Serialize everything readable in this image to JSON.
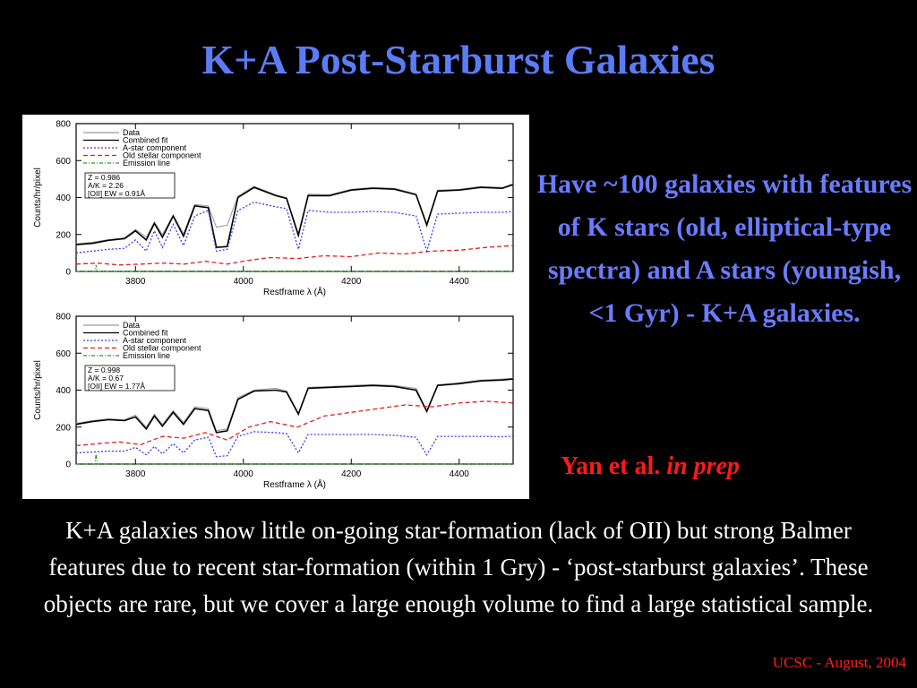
{
  "slide": {
    "title": "K+A Post-Starburst Galaxies",
    "side_text": "Have ~100 galaxies with features of K stars (old, elliptical-type spectra) and A stars (youngish, <1 Gyr) - K+A galaxies.",
    "citation_authors": "Yan et al.",
    "citation_status": "in prep",
    "body_text": "K+A galaxies show little on-going star-formation (lack of OII) but strong Balmer features due to recent star-formation (within 1 Gry) - ‘post-starburst galaxies’.  These objects are rare, but we cover a large enough volume to find a large statistical sample.",
    "footer": "UCSC - August, 2004"
  },
  "chart_data": [
    {
      "type": "line",
      "xlabel": "Restframe λ (Å)",
      "ylabel": "Counts/hr/pixel",
      "xlim": [
        3690,
        4500
      ],
      "ylim": [
        0,
        800
      ],
      "xticks": [
        3800,
        4000,
        4200,
        4400
      ],
      "yticks": [
        0,
        200,
        400,
        600,
        800
      ],
      "legend_position": "top-left",
      "legend": [
        "Data",
        "Combined fit",
        "A-star component",
        "Old stellar component",
        "Emission line"
      ],
      "annotations": [
        "Z = 0.986",
        "A/K =   2.26",
        "[OII] EW =   0.91Å"
      ],
      "series": [
        {
          "name": "Data",
          "color": "#9a9a9a",
          "x": [
            3690,
            3720,
            3750,
            3780,
            3800,
            3820,
            3835,
            3850,
            3870,
            3889,
            3910,
            3935,
            3950,
            3970,
            3990,
            4020,
            4060,
            4080,
            4102,
            4120,
            4160,
            4200,
            4240,
            4280,
            4320,
            4340,
            4360,
            4400,
            4440,
            4480,
            4500
          ],
          "y": [
            150,
            158,
            172,
            182,
            228,
            185,
            268,
            200,
            305,
            205,
            362,
            355,
            240,
            250,
            408,
            460,
            415,
            400,
            205,
            418,
            415,
            445,
            455,
            450,
            420,
            260,
            440,
            445,
            460,
            455,
            475
          ]
        },
        {
          "name": "Combined fit",
          "color": "#000000",
          "x": [
            3690,
            3720,
            3750,
            3780,
            3800,
            3820,
            3835,
            3850,
            3870,
            3889,
            3910,
            3935,
            3950,
            3970,
            3990,
            4020,
            4060,
            4080,
            4102,
            4120,
            4160,
            4200,
            4240,
            4280,
            4320,
            4340,
            4360,
            4400,
            4440,
            4480,
            4500
          ],
          "y": [
            145,
            152,
            168,
            178,
            220,
            170,
            260,
            185,
            300,
            190,
            355,
            345,
            130,
            135,
            400,
            455,
            410,
            395,
            195,
            410,
            410,
            440,
            450,
            445,
            415,
            250,
            435,
            440,
            455,
            450,
            470
          ]
        },
        {
          "name": "A-star component",
          "color": "#3a3af0",
          "x": [
            3690,
            3720,
            3750,
            3780,
            3800,
            3820,
            3835,
            3850,
            3870,
            3889,
            3910,
            3935,
            3950,
            3970,
            3990,
            4020,
            4060,
            4080,
            4102,
            4120,
            4160,
            4200,
            4240,
            4280,
            4320,
            4340,
            4360,
            4400,
            4440,
            4480,
            4500
          ],
          "y": [
            100,
            110,
            120,
            125,
            170,
            110,
            220,
            130,
            255,
            140,
            300,
            330,
            110,
            120,
            330,
            375,
            350,
            340,
            120,
            330,
            320,
            320,
            325,
            320,
            300,
            110,
            310,
            315,
            320,
            320,
            325
          ]
        },
        {
          "name": "Old stellar component",
          "color": "#e02020",
          "x": [
            3690,
            3730,
            3770,
            3810,
            3850,
            3890,
            3930,
            3970,
            4010,
            4050,
            4100,
            4150,
            4200,
            4250,
            4300,
            4350,
            4400,
            4450,
            4500
          ],
          "y": [
            40,
            45,
            35,
            40,
            45,
            40,
            55,
            40,
            60,
            75,
            70,
            85,
            80,
            100,
            95,
            110,
            115,
            130,
            140
          ]
        },
        {
          "name": "Emission line",
          "color": "#20a020",
          "x": [
            3690,
            3725,
            3727,
            3729,
            3760,
            3800,
            3900,
            4000,
            4100,
            4200,
            4300,
            4400,
            4500
          ],
          "y": [
            0,
            0,
            35,
            0,
            0,
            0,
            0,
            0,
            0,
            0,
            0,
            0,
            0
          ]
        }
      ]
    },
    {
      "type": "line",
      "xlabel": "Restframe λ (Å)",
      "ylabel": "Counts/hr/pixel",
      "xlim": [
        3690,
        4500
      ],
      "ylim": [
        0,
        800
      ],
      "xticks": [
        3800,
        4000,
        4200,
        4400
      ],
      "yticks": [
        0,
        200,
        400,
        600,
        800
      ],
      "legend_position": "top-left",
      "legend": [
        "Data",
        "Combined fit",
        "A-star component",
        "Old stellar component",
        "Emission line"
      ],
      "annotations": [
        "Z = 0.998",
        "A/K =   0.67",
        "[OII] EW =   1.77Å"
      ],
      "series": [
        {
          "name": "Data",
          "color": "#9a9a9a",
          "x": [
            3690,
            3720,
            3750,
            3780,
            3800,
            3820,
            3835,
            3850,
            3870,
            3889,
            3910,
            3935,
            3950,
            3970,
            3990,
            4020,
            4060,
            4080,
            4102,
            4120,
            4160,
            4200,
            4240,
            4280,
            4320,
            4340,
            4360,
            4400,
            4440,
            4480,
            4500
          ],
          "y": [
            220,
            235,
            245,
            240,
            265,
            200,
            270,
            215,
            290,
            225,
            310,
            300,
            180,
            190,
            360,
            400,
            410,
            395,
            275,
            415,
            420,
            425,
            430,
            425,
            410,
            290,
            430,
            440,
            455,
            460,
            465
          ]
        },
        {
          "name": "Combined fit",
          "color": "#000000",
          "x": [
            3690,
            3720,
            3750,
            3780,
            3800,
            3820,
            3835,
            3850,
            3870,
            3889,
            3910,
            3935,
            3950,
            3970,
            3990,
            4020,
            4060,
            4080,
            4102,
            4120,
            4160,
            4200,
            4240,
            4280,
            4320,
            4340,
            4360,
            4400,
            4440,
            4480,
            4500
          ],
          "y": [
            215,
            230,
            240,
            235,
            255,
            190,
            260,
            205,
            280,
            215,
            300,
            290,
            170,
            180,
            350,
            395,
            400,
            390,
            270,
            410,
            415,
            420,
            425,
            420,
            400,
            285,
            425,
            435,
            450,
            455,
            460
          ]
        },
        {
          "name": "A-star component",
          "color": "#3a3af0",
          "x": [
            3690,
            3720,
            3750,
            3780,
            3800,
            3820,
            3835,
            3850,
            3870,
            3889,
            3910,
            3935,
            3950,
            3970,
            3990,
            4020,
            4060,
            4080,
            4102,
            4120,
            4160,
            4200,
            4240,
            4280,
            4320,
            4340,
            4360,
            4400,
            4440,
            4480,
            4500
          ],
          "y": [
            60,
            65,
            70,
            70,
            90,
            50,
            95,
            55,
            110,
            60,
            130,
            145,
            40,
            45,
            150,
            175,
            170,
            165,
            60,
            160,
            160,
            160,
            160,
            155,
            145,
            50,
            150,
            150,
            150,
            148,
            150
          ]
        },
        {
          "name": "Old stellar component",
          "color": "#e02020",
          "x": [
            3690,
            3730,
            3770,
            3810,
            3850,
            3890,
            3930,
            3970,
            4010,
            4050,
            4100,
            4150,
            4200,
            4250,
            4300,
            4350,
            4400,
            4450,
            4500
          ],
          "y": [
            100,
            110,
            120,
            105,
            150,
            140,
            170,
            130,
            200,
            230,
            200,
            260,
            280,
            300,
            320,
            310,
            330,
            340,
            330
          ]
        },
        {
          "name": "Emission line",
          "color": "#20a020",
          "x": [
            3690,
            3725,
            3727,
            3729,
            3760,
            3800,
            3900,
            4000,
            4100,
            4200,
            4300,
            4400,
            4500
          ],
          "y": [
            0,
            0,
            60,
            0,
            0,
            0,
            0,
            0,
            0,
            0,
            0,
            0,
            0
          ]
        }
      ]
    }
  ]
}
